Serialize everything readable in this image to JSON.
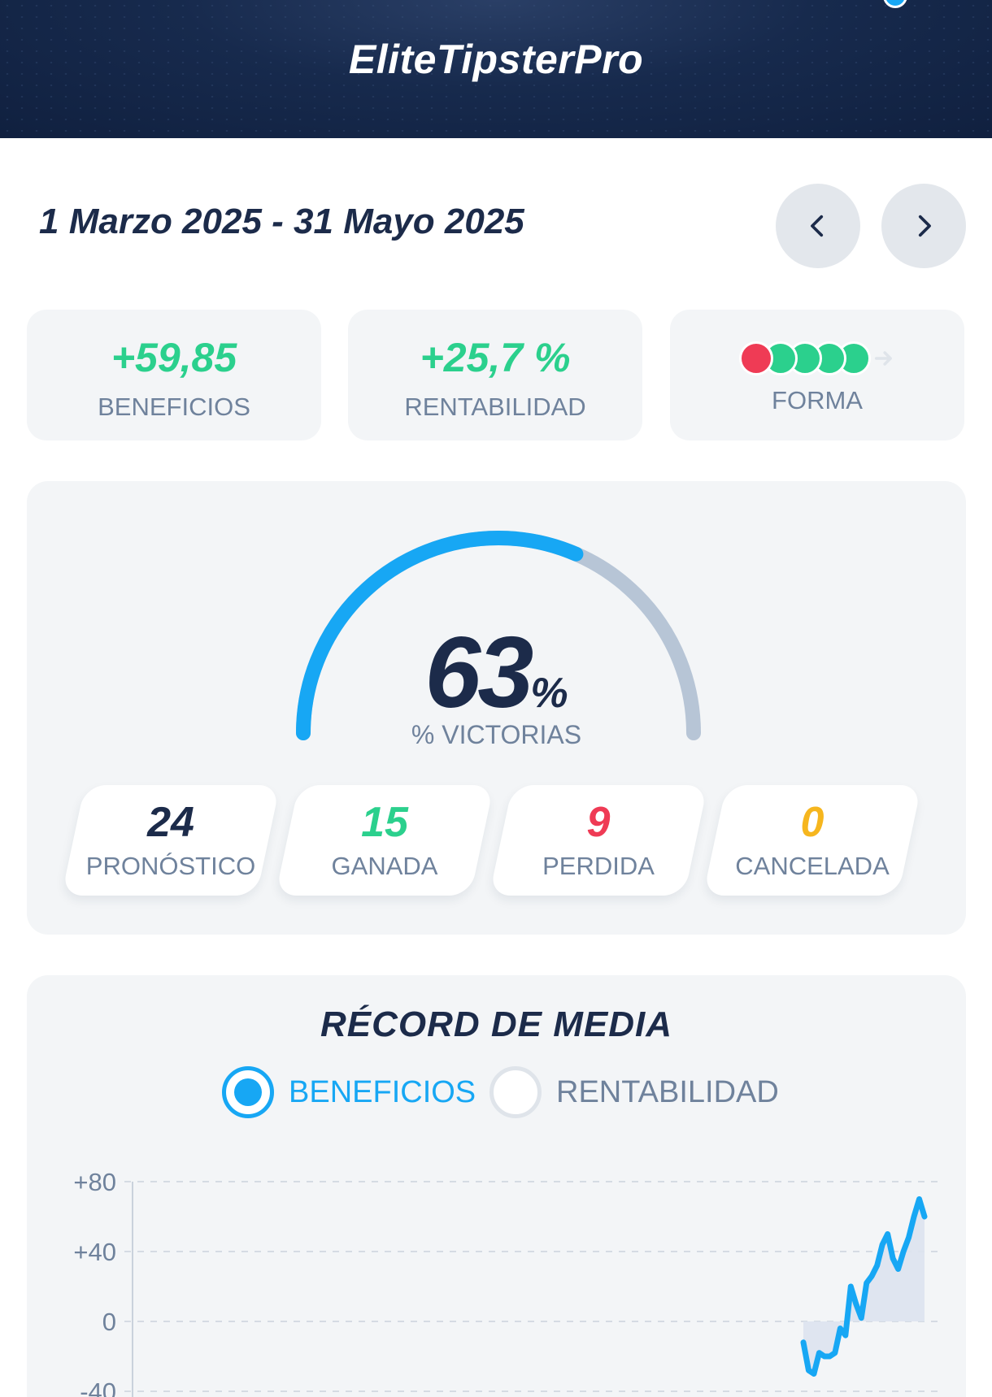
{
  "header": {
    "title": "EliteTipsterPro"
  },
  "period": {
    "range": "1 Marzo 2025 - 31 Mayo 2025",
    "prev_icon": "chevron-left-icon",
    "next_icon": "chevron-right-icon"
  },
  "stats": {
    "profit": {
      "value": "+59,85",
      "label": "BENEFICIOS"
    },
    "yield": {
      "value": "+25,7 %",
      "label": "RENTABILIDAD"
    },
    "form": {
      "label": "FORMA",
      "results": [
        "#ef3b55",
        "#2bd08d",
        "#2bd08d",
        "#2bd08d",
        "#2bd08d"
      ]
    }
  },
  "win_rate": {
    "percent": 63,
    "value": "63",
    "symbol": "%",
    "label": "% VICTORIAS",
    "colors": {
      "fill": "#17a7f4",
      "track": "#b7c5d6"
    }
  },
  "counts": [
    {
      "value": "24",
      "label": "PRONÓSTICO",
      "color": "#1c2b4a"
    },
    {
      "value": "15",
      "label": "GANADA",
      "color": "#2bd08d"
    },
    {
      "value": "9",
      "label": "PERDIDA",
      "color": "#ef3b55"
    },
    {
      "value": "0",
      "label": "CANCELADA",
      "color": "#f6b61e"
    }
  ],
  "record": {
    "title": "RÉCORD DE MEDIA",
    "options": {
      "profit": "BENEFICIOS",
      "yield": "RENTABILIDAD"
    },
    "selected": "BENEFICIOS"
  },
  "chart_data": {
    "type": "line",
    "yticks": [
      "+80",
      "+40",
      "0",
      "-40"
    ],
    "ylim": [
      -40,
      80
    ],
    "grid": true,
    "x": [
      1,
      2,
      3,
      4,
      5,
      6,
      7,
      8,
      9,
      10,
      11,
      12,
      13,
      14,
      15,
      16,
      17,
      18,
      19,
      20,
      21,
      22,
      23,
      24
    ],
    "values": [
      -12,
      -28,
      -30,
      -18,
      -20,
      -20,
      -18,
      -4,
      -8,
      20,
      10,
      2,
      22,
      26,
      32,
      44,
      50,
      36,
      30,
      40,
      48,
      60,
      70,
      60
    ],
    "series": [
      {
        "color": "#17a7f4"
      }
    ]
  }
}
